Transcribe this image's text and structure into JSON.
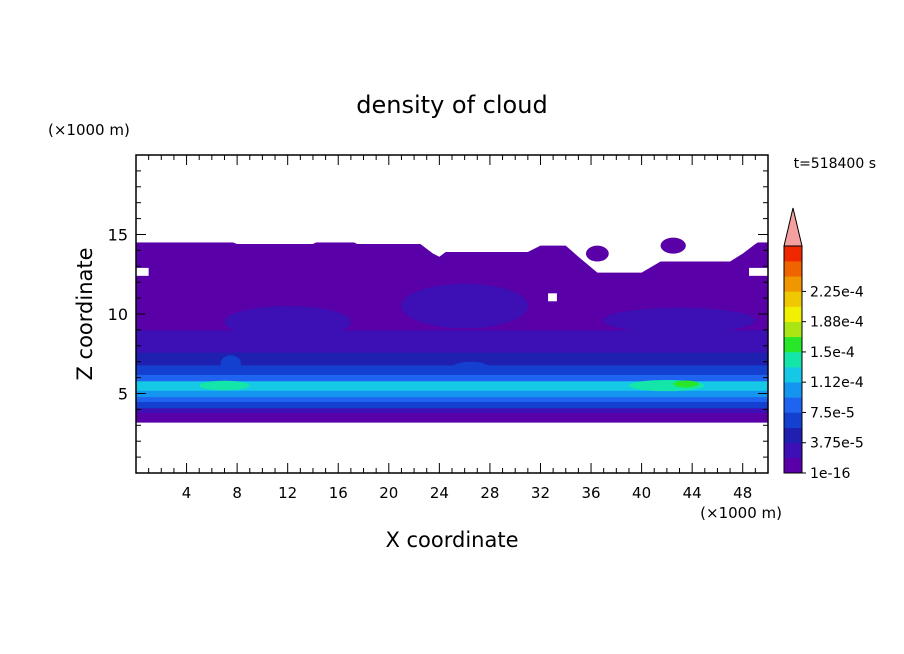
{
  "chart_data": {
    "type": "heatmap",
    "title": "density of cloud",
    "xlabel": "X coordinate",
    "ylabel": "Z coordinate",
    "x_unit": "(×1000 m)",
    "y_unit": "(×1000 m)",
    "time_label": "t=518400 s",
    "xlim": [
      0,
      50
    ],
    "ylim": [
      0,
      20
    ],
    "x_ticks": [
      4,
      8,
      12,
      16,
      20,
      24,
      28,
      32,
      36,
      40,
      44,
      48
    ],
    "y_ticks": [
      5,
      10,
      15
    ],
    "colorbar": {
      "labels": [
        {
          "level": 0,
          "text": "1e-16"
        },
        {
          "level": 2,
          "text": "3.75e-5"
        },
        {
          "level": 4,
          "text": "7.5e-5"
        },
        {
          "level": 6,
          "text": "1.12e-4"
        },
        {
          "level": 8,
          "text": "1.5e-4"
        },
        {
          "level": 10,
          "text": "1.88e-4"
        },
        {
          "level": 12,
          "text": "2.25e-4"
        }
      ],
      "colors": [
        "#5a00a8",
        "#3c10b4",
        "#2020b0",
        "#1440d0",
        "#1e64f0",
        "#1496f0",
        "#14c8e6",
        "#14e6aa",
        "#28e628",
        "#aae614",
        "#f0f000",
        "#f0c800",
        "#f09600",
        "#f06400",
        "#f02800"
      ],
      "extend_color": "#f4a0a0",
      "extend": "max"
    },
    "bands": [
      {
        "z_bottom": 3.2,
        "z_top": 3.8,
        "level": 0
      },
      {
        "z_bottom": 3.8,
        "z_top": 4.1,
        "level": 1
      },
      {
        "z_bottom": 4.1,
        "z_top": 4.5,
        "level": 3
      },
      {
        "z_bottom": 4.5,
        "z_top": 4.8,
        "level": 4
      },
      {
        "z_bottom": 4.8,
        "z_top": 5.2,
        "level": 5
      },
      {
        "z_bottom": 5.2,
        "z_top": 5.8,
        "level": 6
      },
      {
        "z_bottom": 5.8,
        "z_top": 6.2,
        "level": 4
      },
      {
        "z_bottom": 6.2,
        "z_top": 6.8,
        "level": 3
      },
      {
        "z_bottom": 6.8,
        "z_top": 7.6,
        "level": 2
      },
      {
        "z_bottom": 7.6,
        "z_top": 9.0,
        "level": 1
      },
      {
        "z_bottom": 9.0,
        "z_top": 14.5,
        "level": 0
      }
    ],
    "top_boundary": [
      [
        0,
        14.8
      ],
      [
        1,
        15.1
      ],
      [
        6,
        15.1
      ],
      [
        7,
        14.7
      ],
      [
        8,
        14.4
      ],
      [
        14,
        14.4
      ],
      [
        15,
        14.8
      ],
      [
        16.5,
        14.8
      ],
      [
        17.5,
        14.4
      ],
      [
        22.5,
        14.4
      ],
      [
        23.5,
        13.8
      ],
      [
        24,
        13.6
      ],
      [
        24.5,
        13.9
      ],
      [
        31,
        13.9
      ],
      [
        32,
        14.3
      ],
      [
        34,
        14.3
      ],
      [
        35,
        13.6
      ],
      [
        36.5,
        12.6
      ],
      [
        40,
        12.6
      ],
      [
        41.5,
        13.3
      ],
      [
        47,
        13.3
      ],
      [
        48,
        13.8
      ],
      [
        49,
        14.4
      ],
      [
        50,
        14.9
      ]
    ],
    "blobs": [
      {
        "x": 36.5,
        "z": 13.8,
        "rx": 0.9,
        "rz": 0.5,
        "level": 0
      },
      {
        "x": 42.5,
        "z": 14.3,
        "rx": 1.0,
        "rz": 0.5,
        "level": 0
      },
      {
        "x": 26,
        "z": 10.5,
        "rx": 5,
        "rz": 1.4,
        "level": 1
      },
      {
        "x": 12,
        "z": 9.5,
        "rx": 5,
        "rz": 1.0,
        "level": 1
      },
      {
        "x": 43,
        "z": 9.6,
        "rx": 6,
        "rz": 0.8,
        "level": 1
      },
      {
        "x": 7,
        "z": 5.5,
        "rx": 2,
        "rz": 0.3,
        "level": 7
      },
      {
        "x": 42,
        "z": 5.5,
        "rx": 3,
        "rz": 0.35,
        "level": 7
      },
      {
        "x": 43.5,
        "z": 5.6,
        "rx": 1.0,
        "rz": 0.22,
        "level": 8
      },
      {
        "x": 7.5,
        "z": 6.9,
        "rx": 0.8,
        "rz": 0.5,
        "level": 3
      },
      {
        "x": 26.5,
        "z": 6.6,
        "rx": 1.5,
        "rz": 0.4,
        "level": 3
      }
    ],
    "blanks": [
      {
        "x0": 0,
        "x1": 1.0,
        "z0": 12.4,
        "z1": 12.9
      },
      {
        "x0": 48.5,
        "x1": 50,
        "z0": 12.4,
        "z1": 12.9
      },
      {
        "x0": 32.6,
        "x1": 33.3,
        "z0": 10.8,
        "z1": 11.3
      }
    ]
  }
}
